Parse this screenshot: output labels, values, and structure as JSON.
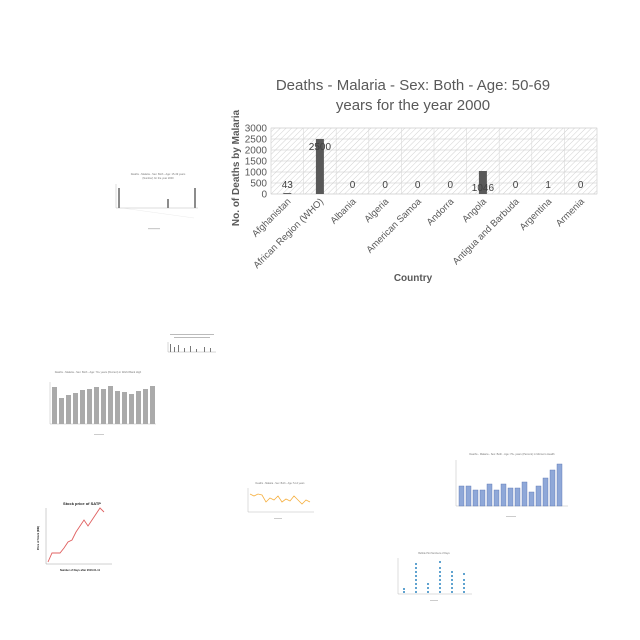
{
  "chart_data": {
    "type": "bar",
    "title": "Deaths - Malaria - Sex: Both - Age: 50-69 years for the year 2000",
    "title_lines": [
      "Deaths - Malaria - Sex: Both - Age: 50-69",
      "years for the year 2000"
    ],
    "xlabel": "Country",
    "ylabel": "No. of Deaths by Malaria",
    "categories": [
      "Afghanistan",
      "African Region (WHO)",
      "Albania",
      "Algeria",
      "American Samoa",
      "Andorra",
      "Angola",
      "Antigua and Barbuda",
      "Argentina",
      "Armenia"
    ],
    "values": [
      43,
      2500,
      0,
      0,
      0,
      0,
      1046,
      0,
      1,
      0
    ],
    "data_labels": [
      "43",
      "2500",
      "0",
      "0",
      "0",
      "0",
      "1046",
      "0",
      "1",
      "0"
    ],
    "ylim": [
      0,
      3000
    ],
    "yticks": [
      0,
      500,
      1000,
      1500,
      2000,
      2500,
      3000
    ],
    "grid": true,
    "bar_color": "#595959",
    "plot_fill": "#ececec"
  },
  "thumbnails": {
    "bar_gray_small": {
      "title_lines": [
        "Deaths - Malaria - Sex: Both - Age: 15-49 years",
        "(Number) for the year 2000"
      ]
    },
    "bar_gray_wide": {
      "title": "Deaths - Malaria - Sex: Both - Age: 70+ years (Percent) in World Bank High"
    },
    "bar_blue": {
      "title": "Deaths - Malaria - Sex: Both - Age: 70+ years (Percent) in Morocco Health"
    },
    "line_orange": {
      "title": "Deaths - Malaria - Sex: Both - Age: 5-14 years"
    },
    "line_red": {
      "title": "Stock price of SATP",
      "xlabel": "Number of Days after 2016-01-11",
      "ylabel": "Price of Stock (INR)"
    },
    "dot_columns": {
      "title": "Bubble Plot Numbers of Days"
    }
  },
  "colors": {
    "gray_bar": "#8c8c8c",
    "blue_bar": "#8fa8d8",
    "blue_bar_stroke": "#5572b0",
    "orange_line": "#f5b041",
    "red_line": "#e06060",
    "dot_blue": "#2e86c1"
  }
}
